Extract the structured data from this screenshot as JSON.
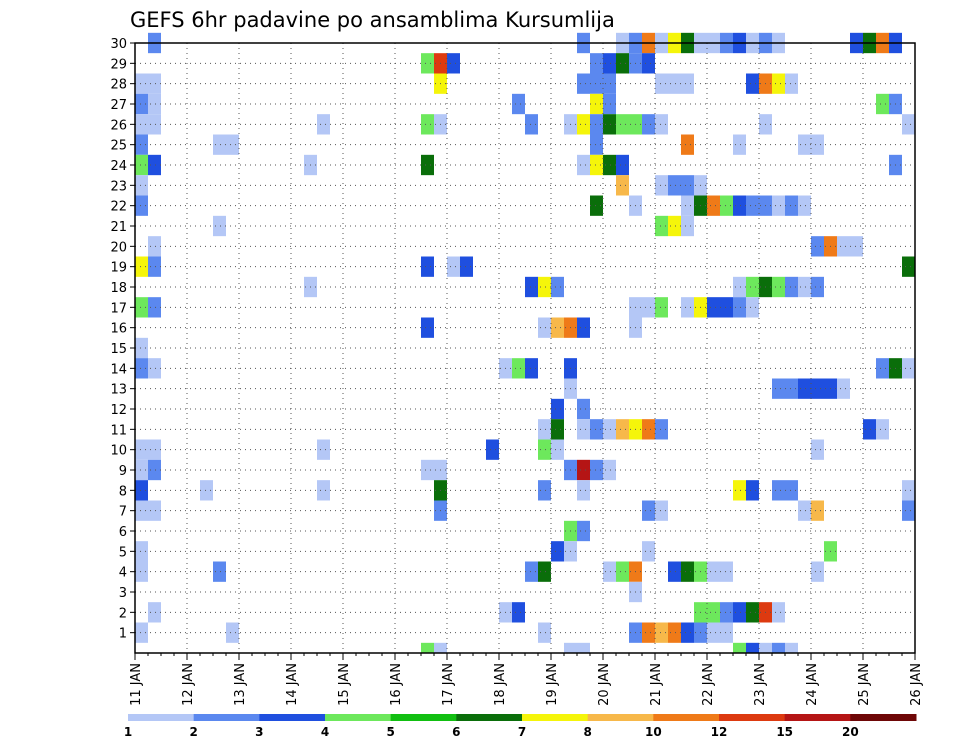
{
  "chart_data": {
    "type": "heatmap",
    "title": "GEFS 6hr padavine po ansamblima Kursumlija",
    "xlabel": "",
    "ylabel": "",
    "x_tick_labels": [
      "11 JAN",
      "12 JAN",
      "13 JAN",
      "14 JAN",
      "15 JAN",
      "16 JAN",
      "17 JAN",
      "18 JAN",
      "19 JAN",
      "20 JAN",
      "21 JAN",
      "22 JAN",
      "23 JAN",
      "24 JAN",
      "25 JAN",
      "26 JAN"
    ],
    "y_tick_labels": [
      "1",
      "2",
      "3",
      "4",
      "5",
      "6",
      "7",
      "8",
      "9",
      "10",
      "11",
      "12",
      "13",
      "14",
      "15",
      "16",
      "17",
      "18",
      "19",
      "20",
      "21",
      "22",
      "23",
      "24",
      "25",
      "26",
      "27",
      "28",
      "29",
      "30"
    ],
    "x_range_days": [
      0,
      15
    ],
    "y_range": [
      0,
      30
    ],
    "grid": true,
    "legend_placement": "bottom",
    "legend_levels": [
      "1",
      "2",
      "3",
      "4",
      "5",
      "6",
      "7",
      "8",
      "10",
      "12",
      "15",
      "20"
    ],
    "legend_colors": [
      "#b4c7f6",
      "#5b88ef",
      "#1f4fdf",
      "#6de85c",
      "#11bf11",
      "#0a6e0a",
      "#f5f50a",
      "#f7b84a",
      "#ef7a18",
      "#dd3a10",
      "#b51515",
      "#6e0707"
    ],
    "cells": [
      [
        0.25,
        30,
        2
      ],
      [
        8.5,
        30,
        2
      ],
      [
        9.25,
        30,
        1
      ],
      [
        9.5,
        30,
        2
      ],
      [
        9.75,
        30,
        10
      ],
      [
        10,
        30,
        1
      ],
      [
        10.25,
        30,
        7
      ],
      [
        10.5,
        30,
        6
      ],
      [
        10.75,
        30,
        1
      ],
      [
        11,
        30,
        1
      ],
      [
        11.25,
        30,
        2
      ],
      [
        11.5,
        30,
        3
      ],
      [
        11.75,
        30,
        1
      ],
      [
        12,
        30,
        2
      ],
      [
        12.25,
        30,
        1
      ],
      [
        13.75,
        30,
        3
      ],
      [
        14,
        30,
        6
      ],
      [
        14.25,
        30,
        10
      ],
      [
        14.5,
        30,
        3
      ],
      [
        5.5,
        29,
        4
      ],
      [
        5.75,
        29,
        12
      ],
      [
        6,
        29,
        3
      ],
      [
        8.75,
        29,
        2
      ],
      [
        9,
        29,
        3
      ],
      [
        9.25,
        29,
        6
      ],
      [
        9.5,
        29,
        2
      ],
      [
        9.75,
        29,
        3
      ],
      [
        0,
        28,
        1
      ],
      [
        0.25,
        28,
        1
      ],
      [
        5.75,
        28,
        7
      ],
      [
        8.5,
        28,
        2
      ],
      [
        8.75,
        28,
        2
      ],
      [
        9,
        28,
        2
      ],
      [
        10,
        28,
        1
      ],
      [
        10.25,
        28,
        1
      ],
      [
        10.5,
        28,
        1
      ],
      [
        11.75,
        28,
        3
      ],
      [
        12,
        28,
        10
      ],
      [
        12.25,
        28,
        7
      ],
      [
        12.5,
        28,
        1
      ],
      [
        0,
        27,
        2
      ],
      [
        0.25,
        27,
        1
      ],
      [
        7.25,
        27,
        2
      ],
      [
        8.75,
        27,
        7
      ],
      [
        9,
        27,
        2
      ],
      [
        14.25,
        27,
        4
      ],
      [
        14.5,
        27,
        2
      ],
      [
        0,
        26,
        1
      ],
      [
        0.25,
        26,
        1
      ],
      [
        3.5,
        26,
        1
      ],
      [
        5.5,
        26,
        4
      ],
      [
        5.75,
        26,
        1
      ],
      [
        7.5,
        26,
        2
      ],
      [
        8.25,
        26,
        1
      ],
      [
        8.5,
        26,
        7
      ],
      [
        8.75,
        26,
        2
      ],
      [
        9,
        26,
        6
      ],
      [
        9.25,
        26,
        4
      ],
      [
        9.5,
        26,
        4
      ],
      [
        9.75,
        26,
        2
      ],
      [
        10,
        26,
        1
      ],
      [
        12,
        26,
        1
      ],
      [
        14.75,
        26,
        1
      ],
      [
        0,
        25,
        2
      ],
      [
        1.5,
        25,
        1
      ],
      [
        1.75,
        25,
        1
      ],
      [
        8.75,
        25,
        2
      ],
      [
        10.5,
        25,
        10
      ],
      [
        11.5,
        25,
        1
      ],
      [
        12.75,
        25,
        1
      ],
      [
        13,
        25,
        1
      ],
      [
        0,
        24,
        4
      ],
      [
        0.25,
        24,
        3
      ],
      [
        3.25,
        24,
        1
      ],
      [
        5.5,
        24,
        6
      ],
      [
        8.5,
        24,
        1
      ],
      [
        8.75,
        24,
        7
      ],
      [
        9,
        24,
        6
      ],
      [
        9.25,
        24,
        3
      ],
      [
        14.5,
        24,
        2
      ],
      [
        0,
        23,
        1
      ],
      [
        9.25,
        23,
        8
      ],
      [
        10,
        23,
        1
      ],
      [
        10.25,
        23,
        2
      ],
      [
        10.5,
        23,
        2
      ],
      [
        10.75,
        23,
        1
      ],
      [
        0,
        22,
        2
      ],
      [
        8.75,
        22,
        6
      ],
      [
        9.5,
        22,
        1
      ],
      [
        10.5,
        22,
        1
      ],
      [
        10.75,
        22,
        6
      ],
      [
        11,
        22,
        10
      ],
      [
        11.25,
        22,
        4
      ],
      [
        11.5,
        22,
        3
      ],
      [
        11.75,
        22,
        2
      ],
      [
        12,
        22,
        2
      ],
      [
        12.25,
        22,
        1
      ],
      [
        12.5,
        22,
        2
      ],
      [
        12.75,
        22,
        1
      ],
      [
        1.5,
        21,
        1
      ],
      [
        10,
        21,
        4
      ],
      [
        10.25,
        21,
        7
      ],
      [
        10.5,
        21,
        1
      ],
      [
        0.25,
        20,
        1
      ],
      [
        13,
        20,
        2
      ],
      [
        13.25,
        20,
        10
      ],
      [
        13.5,
        20,
        1
      ],
      [
        13.75,
        20,
        1
      ],
      [
        0,
        19,
        7
      ],
      [
        0.25,
        19,
        2
      ],
      [
        5.5,
        19,
        3
      ],
      [
        6,
        19,
        1
      ],
      [
        6.25,
        19,
        3
      ],
      [
        14.75,
        19,
        6
      ],
      [
        3.25,
        18,
        1
      ],
      [
        7.5,
        18,
        3
      ],
      [
        7.75,
        18,
        7
      ],
      [
        8,
        18,
        2
      ],
      [
        11.5,
        18,
        1
      ],
      [
        11.75,
        18,
        4
      ],
      [
        12,
        18,
        6
      ],
      [
        12.25,
        18,
        4
      ],
      [
        12.5,
        18,
        2
      ],
      [
        12.75,
        18,
        1
      ],
      [
        13,
        18,
        2
      ],
      [
        0,
        17,
        4
      ],
      [
        0.25,
        17,
        2
      ],
      [
        9.5,
        17,
        1
      ],
      [
        9.75,
        17,
        1
      ],
      [
        10,
        17,
        4
      ],
      [
        10.5,
        17,
        1
      ],
      [
        10.75,
        17,
        7
      ],
      [
        11,
        17,
        3
      ],
      [
        11.25,
        17,
        3
      ],
      [
        11.5,
        17,
        2
      ],
      [
        11.75,
        17,
        1
      ],
      [
        5.5,
        16,
        3
      ],
      [
        7.75,
        16,
        1
      ],
      [
        8,
        16,
        8
      ],
      [
        8.25,
        16,
        10
      ],
      [
        8.5,
        16,
        3
      ],
      [
        9.5,
        16,
        1
      ],
      [
        0,
        15,
        1
      ],
      [
        0,
        14,
        2
      ],
      [
        0.25,
        14,
        1
      ],
      [
        7,
        14,
        1
      ],
      [
        7.25,
        14,
        4
      ],
      [
        7.5,
        14,
        3
      ],
      [
        8.25,
        14,
        3
      ],
      [
        14.25,
        14,
        2
      ],
      [
        14.5,
        14,
        6
      ],
      [
        14.75,
        14,
        1
      ],
      [
        8.25,
        13,
        1
      ],
      [
        12.25,
        13,
        2
      ],
      [
        12.5,
        13,
        2
      ],
      [
        12.75,
        13,
        3
      ],
      [
        13,
        13,
        3
      ],
      [
        13.25,
        13,
        3
      ],
      [
        13.5,
        13,
        1
      ],
      [
        8,
        12,
        3
      ],
      [
        8.5,
        12,
        2
      ],
      [
        7.75,
        11,
        1
      ],
      [
        8,
        11,
        6
      ],
      [
        8.5,
        11,
        1
      ],
      [
        8.75,
        11,
        2
      ],
      [
        9,
        11,
        1
      ],
      [
        0,
        10,
        1
      ],
      [
        9.25,
        11,
        8
      ],
      [
        9.5,
        11,
        7
      ],
      [
        9.75,
        11,
        10
      ],
      [
        10,
        11,
        2
      ],
      [
        14,
        11,
        3
      ],
      [
        14.25,
        11,
        1
      ],
      [
        0.25,
        10,
        1
      ],
      [
        3.5,
        10,
        1
      ],
      [
        6.75,
        10,
        3
      ],
      [
        7.75,
        10,
        4
      ],
      [
        8,
        10,
        1
      ],
      [
        13,
        10,
        1
      ],
      [
        0,
        9,
        1
      ],
      [
        0.25,
        9,
        2
      ],
      [
        5.5,
        9,
        1
      ],
      [
        5.75,
        9,
        1
      ],
      [
        8.25,
        9,
        2
      ],
      [
        8.5,
        9,
        15
      ],
      [
        8.75,
        9,
        2
      ],
      [
        9,
        9,
        1
      ],
      [
        0,
        8,
        3
      ],
      [
        1.25,
        8,
        1
      ],
      [
        3.5,
        8,
        1
      ],
      [
        5.75,
        8,
        6
      ],
      [
        7.75,
        8,
        2
      ],
      [
        8.5,
        8,
        1
      ],
      [
        11.5,
        8,
        7
      ],
      [
        11.75,
        8,
        3
      ],
      [
        12.25,
        8,
        2
      ],
      [
        12.5,
        8,
        2
      ],
      [
        14.75,
        8,
        1
      ],
      [
        0,
        7,
        1
      ],
      [
        0.25,
        7,
        1
      ],
      [
        5.75,
        7,
        2
      ],
      [
        9.75,
        7,
        2
      ],
      [
        10,
        7,
        1
      ],
      [
        12.75,
        7,
        1
      ],
      [
        13,
        7,
        8
      ],
      [
        14.75,
        7,
        2
      ],
      [
        8.25,
        6,
        4
      ],
      [
        8.5,
        6,
        2
      ],
      [
        0,
        5,
        1
      ],
      [
        8,
        5,
        3
      ],
      [
        8.25,
        5,
        1
      ],
      [
        9.75,
        5,
        1
      ],
      [
        13.25,
        5,
        4
      ],
      [
        0,
        4,
        1
      ],
      [
        1.5,
        4,
        2
      ],
      [
        7.5,
        4,
        2
      ],
      [
        7.75,
        4,
        6
      ],
      [
        9,
        4,
        1
      ],
      [
        9.25,
        4,
        4
      ],
      [
        9.5,
        4,
        10
      ],
      [
        10.25,
        4,
        3
      ],
      [
        10.5,
        4,
        6
      ],
      [
        10.75,
        4,
        4
      ],
      [
        11,
        4,
        1
      ],
      [
        11.25,
        4,
        1
      ],
      [
        13,
        4,
        1
      ],
      [
        9.5,
        3,
        1
      ],
      [
        0.25,
        2,
        1
      ],
      [
        7,
        2,
        1
      ],
      [
        7.25,
        2,
        3
      ],
      [
        10.75,
        2,
        4
      ],
      [
        11,
        2,
        4
      ],
      [
        11.25,
        2,
        2
      ],
      [
        11.5,
        2,
        3
      ],
      [
        11.75,
        2,
        6
      ],
      [
        12,
        2,
        12
      ],
      [
        12.25,
        2,
        1
      ],
      [
        0,
        1,
        1
      ],
      [
        1.75,
        1,
        1
      ],
      [
        7.75,
        1,
        1
      ],
      [
        9.5,
        1,
        2
      ],
      [
        9.75,
        1,
        10
      ],
      [
        10,
        1,
        8
      ],
      [
        10.25,
        1,
        10
      ],
      [
        10.5,
        1,
        3
      ],
      [
        10.75,
        1,
        2
      ],
      [
        11,
        1,
        1
      ],
      [
        11.25,
        1,
        1
      ],
      [
        5.5,
        0,
        4
      ],
      [
        5.75,
        0,
        1
      ],
      [
        8.25,
        0,
        1
      ],
      [
        8.5,
        0,
        1
      ],
      [
        11.5,
        0,
        4
      ],
      [
        11.75,
        0,
        3
      ],
      [
        12,
        0,
        1
      ],
      [
        12.25,
        0,
        2
      ],
      [
        12.5,
        0,
        1
      ]
    ]
  }
}
